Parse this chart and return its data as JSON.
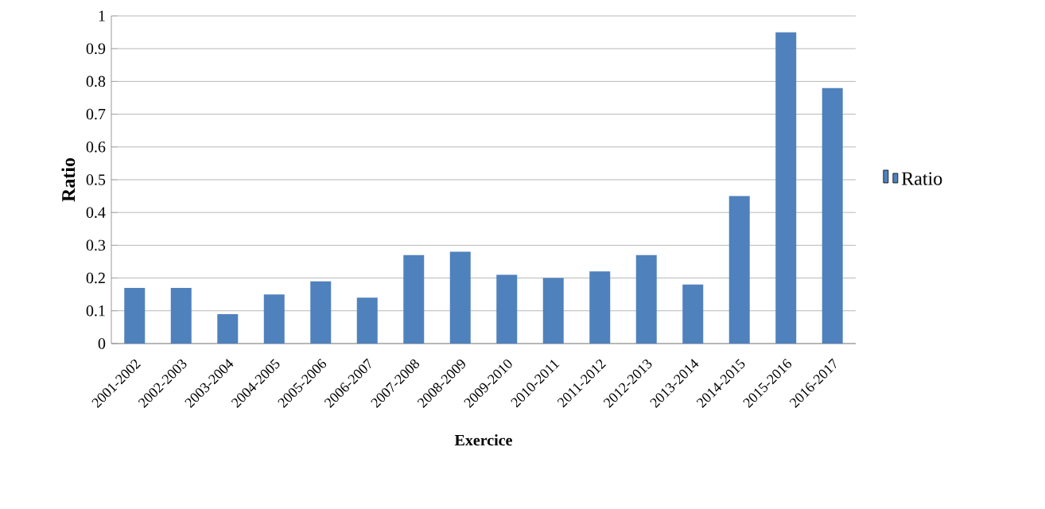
{
  "chart_data": {
    "type": "bar",
    "xlabel": "Exercice",
    "ylabel": "Ratio",
    "categories": [
      "2001-2002",
      "2002-2003",
      "2003-2004",
      "2004-2005",
      "2005-2006",
      "2006-2007",
      "2007-2008",
      "2008-2009",
      "2009-2010",
      "2010-2011",
      "2011-2012",
      "2012-2013",
      "2013-2014",
      "2014-2015",
      "2015-2016",
      "2016-2017"
    ],
    "series": [
      {
        "name": "Ratio",
        "color": "#4f81bd",
        "values": [
          0.17,
          0.17,
          0.09,
          0.15,
          0.19,
          0.14,
          0.27,
          0.28,
          0.21,
          0.2,
          0.22,
          0.27,
          0.18,
          0.45,
          0.95,
          0.78
        ]
      }
    ],
    "ylim": [
      0,
      1
    ],
    "yticks": [
      0,
      0.1,
      0.2,
      0.3,
      0.4,
      0.5,
      0.6,
      0.7,
      0.8,
      0.9,
      1
    ],
    "grid": "y",
    "legend": "right"
  }
}
